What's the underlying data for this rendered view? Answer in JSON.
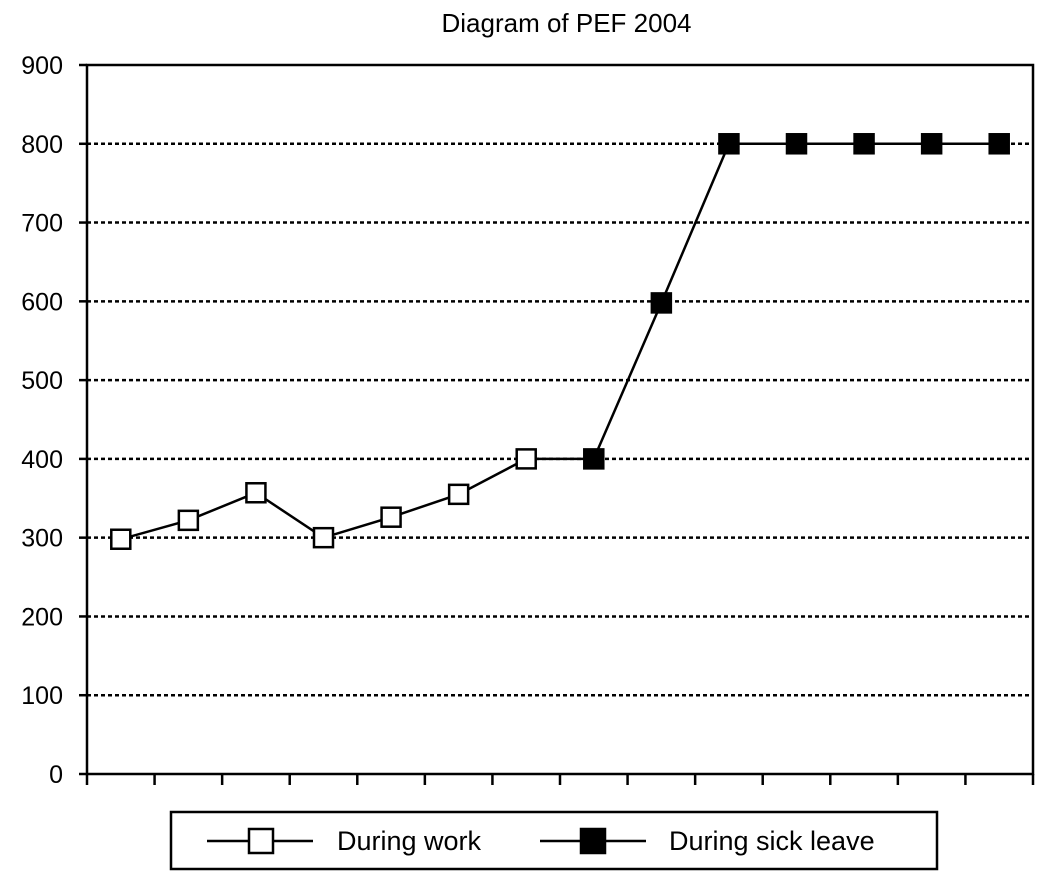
{
  "chart_data": {
    "type": "line",
    "title": "Diagram of PEF 2004",
    "xlabel": "",
    "ylabel": "",
    "ylim": [
      0,
      900
    ],
    "yticks": [
      0,
      100,
      200,
      300,
      400,
      500,
      600,
      700,
      800,
      900
    ],
    "x_count": 14,
    "grid": "horizontal dotted",
    "legend_position": "bottom",
    "series": [
      {
        "name": "During work",
        "marker": "hollow-square",
        "x": [
          1,
          2,
          3,
          4,
          5,
          6,
          7
        ],
        "values": [
          298,
          322,
          357,
          300,
          326,
          355,
          400
        ]
      },
      {
        "name": "During sick leave",
        "marker": "filled-square",
        "x": [
          8,
          9,
          10,
          11,
          12,
          13,
          14
        ],
        "values": [
          400,
          598,
          800,
          800,
          800,
          800,
          800
        ]
      }
    ]
  }
}
